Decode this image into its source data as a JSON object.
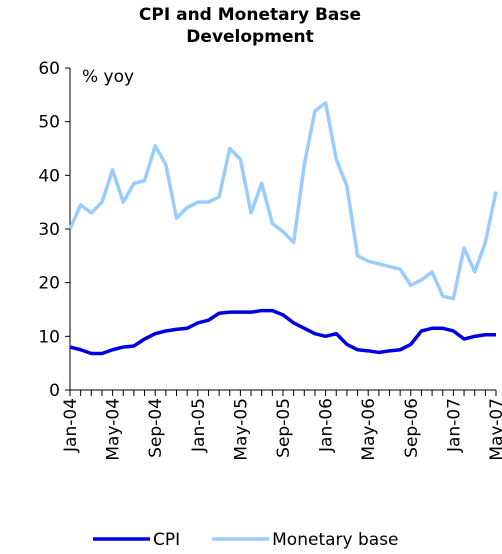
{
  "chart_data": {
    "type": "line",
    "title": "CPI and Monetary Base Development",
    "annotation": "% yoy",
    "categories": [
      "Jan-04",
      null,
      null,
      null,
      "May-04",
      null,
      null,
      null,
      "Sep-04",
      null,
      null,
      null,
      "Jan-05",
      null,
      null,
      null,
      "May-05",
      null,
      null,
      null,
      "Sep-05",
      null,
      null,
      null,
      "Jan-06",
      null,
      null,
      null,
      "May-06",
      null,
      null,
      null,
      "Sep-06",
      null,
      null,
      null,
      "Jan-07",
      null,
      null,
      null,
      "May-07"
    ],
    "series": [
      {
        "name": "CPI",
        "color": "#0000e0",
        "values": [
          8,
          7.5,
          6.8,
          6.8,
          7.5,
          8,
          8.2,
          9.5,
          10.5,
          11,
          11.3,
          11.5,
          12.5,
          13,
          14.3,
          14.5,
          14.5,
          14.5,
          14.8,
          14.8,
          14,
          12.5,
          11.5,
          10.5,
          10,
          10.5,
          8.5,
          7.5,
          7.3,
          7,
          7.3,
          7.5,
          8.5,
          11,
          11.5,
          11.5,
          11,
          9.5,
          10,
          10.3,
          10.3
        ]
      },
      {
        "name": "Monetary base",
        "color": "#99ccff",
        "values": [
          30,
          34.5,
          33,
          35,
          41,
          35,
          38.5,
          39,
          45.5,
          42,
          32,
          34,
          35,
          35,
          36,
          45,
          43,
          33,
          38.5,
          31,
          29.5,
          27.5,
          42,
          52,
          53.5,
          43,
          38,
          25,
          24,
          23.5,
          23,
          22.5,
          19.5,
          20.5,
          22,
          17.5,
          17,
          26.5,
          22,
          27.5,
          37
        ]
      }
    ],
    "ylim": [
      0,
      60
    ],
    "yticks": [
      0,
      10,
      20,
      30,
      40,
      50,
      60
    ],
    "legend": "bottom"
  }
}
